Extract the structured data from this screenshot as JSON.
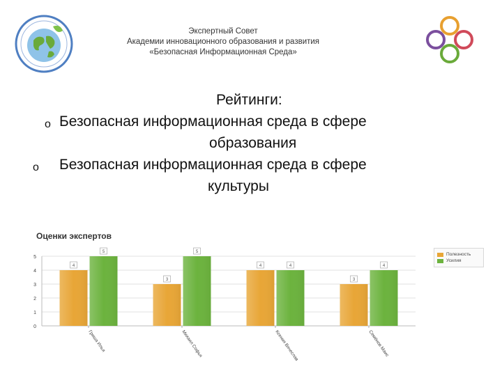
{
  "header": {
    "org_lines": [
      "Экспертный Совет",
      "Академии инновационного образования и развития",
      "«Безопасная Информационная Среда»"
    ],
    "left_logo_icon": "globe-seal-icon",
    "right_logo_icon": "four-rings-icon",
    "right_logo_colors": [
      "#e8a030",
      "#d04a5a",
      "#7b4f9e",
      "#6aaa3a"
    ]
  },
  "ratings": {
    "heading": "Рейтинги:",
    "bullet": "o",
    "item1_line1": "Безопасная информационная среда в сфере",
    "item1_line2": "образования",
    "item2_line1": "Безопасная информационная среда в сфере",
    "item2_line2": "культуры"
  },
  "chart_data": {
    "type": "bar",
    "title": "Оценки экспертов",
    "categories": [
      "Гриша Илья",
      "Михаил Софья",
      "Ксения Вячеслав",
      "Семёнов Маис"
    ],
    "series": [
      {
        "name": "Полезность",
        "values": [
          4,
          3,
          4,
          3
        ],
        "color": "#e8a637"
      },
      {
        "name": "Усилия",
        "values": [
          5,
          5,
          4,
          4
        ],
        "color": "#6cb33e"
      }
    ],
    "ylim": [
      0,
      5
    ],
    "yticks": [
      0,
      1,
      2,
      3,
      4,
      5
    ],
    "grid": true,
    "legend": "top-right"
  }
}
